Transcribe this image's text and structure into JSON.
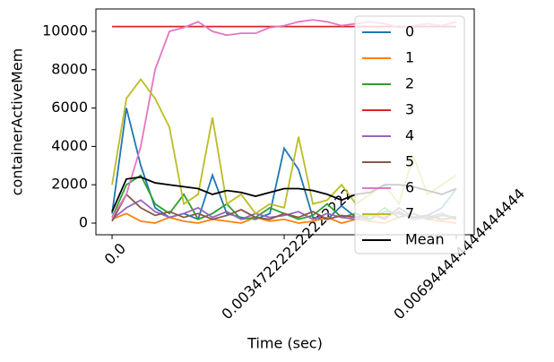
{
  "chart_data": {
    "type": "line",
    "xlabel": "Time (sec)",
    "ylabel": "containerActiveMem",
    "x": [
      0,
      0.000289,
      0.000579,
      0.000868,
      0.001157,
      0.001447,
      0.001736,
      0.002025,
      0.002315,
      0.002604,
      0.002894,
      0.003183,
      0.003472,
      0.003762,
      0.004051,
      0.00434,
      0.00463,
      0.004919,
      0.005208,
      0.005498,
      0.005787,
      0.006076,
      0.006366,
      0.006655,
      0.006944
    ],
    "xlim": [
      -0.000326,
      0.007306
    ],
    "xticks": [
      {
        "value": 0,
        "label": "0.0"
      },
      0.003472222222222222,
      0.006944444444444444
    ],
    "ylim": [
      -607,
      11168
    ],
    "yticks": [
      0,
      2000,
      4000,
      6000,
      8000,
      10000
    ],
    "legend": "upper right",
    "series": [
      {
        "name": "0",
        "color": "#1f77b4",
        "values": [
          500,
          6000,
          3000,
          800,
          300,
          500,
          200,
          2500,
          500,
          300,
          200,
          500,
          3900,
          2800,
          300,
          200,
          900,
          300,
          200,
          600,
          500,
          300,
          400,
          800,
          1800
        ]
      },
      {
        "name": "1",
        "color": "#ff7f0e",
        "values": [
          200,
          500,
          100,
          0,
          300,
          100,
          0,
          200,
          100,
          0,
          300,
          100,
          200,
          0,
          100,
          300,
          0,
          200,
          100,
          0,
          300,
          500,
          200,
          100,
          0
        ]
      },
      {
        "name": "2",
        "color": "#2ca02c",
        "values": [
          300,
          2000,
          2500,
          1000,
          500,
          1500,
          200,
          500,
          1000,
          200,
          300,
          800,
          500,
          200,
          400,
          1000,
          300,
          500,
          200,
          800,
          300,
          500,
          200,
          400,
          300
        ]
      },
      {
        "name": "3",
        "color": "#d62728",
        "values": [
          10250,
          10250,
          10250,
          10250,
          10250,
          10250,
          10250,
          10250,
          10250,
          10250,
          10250,
          10250,
          10250,
          10250,
          10250,
          10250,
          10250,
          10250,
          10250,
          10250,
          10250,
          10250,
          10250,
          10250,
          10250
        ]
      },
      {
        "name": "4",
        "color": "#9467bd",
        "values": [
          200,
          800,
          1200,
          600,
          300,
          500,
          800,
          300,
          600,
          200,
          500,
          300,
          400,
          600,
          200,
          500,
          300,
          200,
          400,
          300,
          600,
          200,
          300,
          500,
          200
        ]
      },
      {
        "name": "5",
        "color": "#8c564b",
        "values": [
          100,
          1500,
          800,
          400,
          600,
          300,
          500,
          200,
          400,
          700,
          300,
          200,
          500,
          300,
          600,
          200,
          400,
          300,
          500,
          200,
          800,
          300,
          400,
          200,
          300
        ]
      },
      {
        "name": "6",
        "color": "#e377c2",
        "values": [
          300,
          1500,
          4000,
          8000,
          10000,
          10200,
          10500,
          10000,
          9800,
          9900,
          9900,
          10200,
          10300,
          10500,
          10600,
          10500,
          10300,
          10400,
          10500,
          10400,
          10200,
          10300,
          10400,
          10300,
          10500
        ]
      },
      {
        "name": "7",
        "color": "#bcbd22",
        "values": [
          2000,
          6500,
          7500,
          6500,
          5000,
          1000,
          1500,
          5500,
          1000,
          1500,
          500,
          1000,
          800,
          4500,
          1000,
          1200,
          2000,
          1000,
          1500,
          2000,
          1000,
          3500,
          1500,
          2000,
          2500
        ]
      },
      {
        "name": "Mean",
        "color": "#000000",
        "values": [
          600,
          2300,
          2400,
          2100,
          2000,
          1900,
          1800,
          1500,
          1700,
          1600,
          1400,
          1600,
          1800,
          1800,
          1700,
          1500,
          1200,
          1500,
          1600,
          2000,
          2000,
          1900,
          1700,
          1500,
          1800
        ]
      }
    ]
  }
}
